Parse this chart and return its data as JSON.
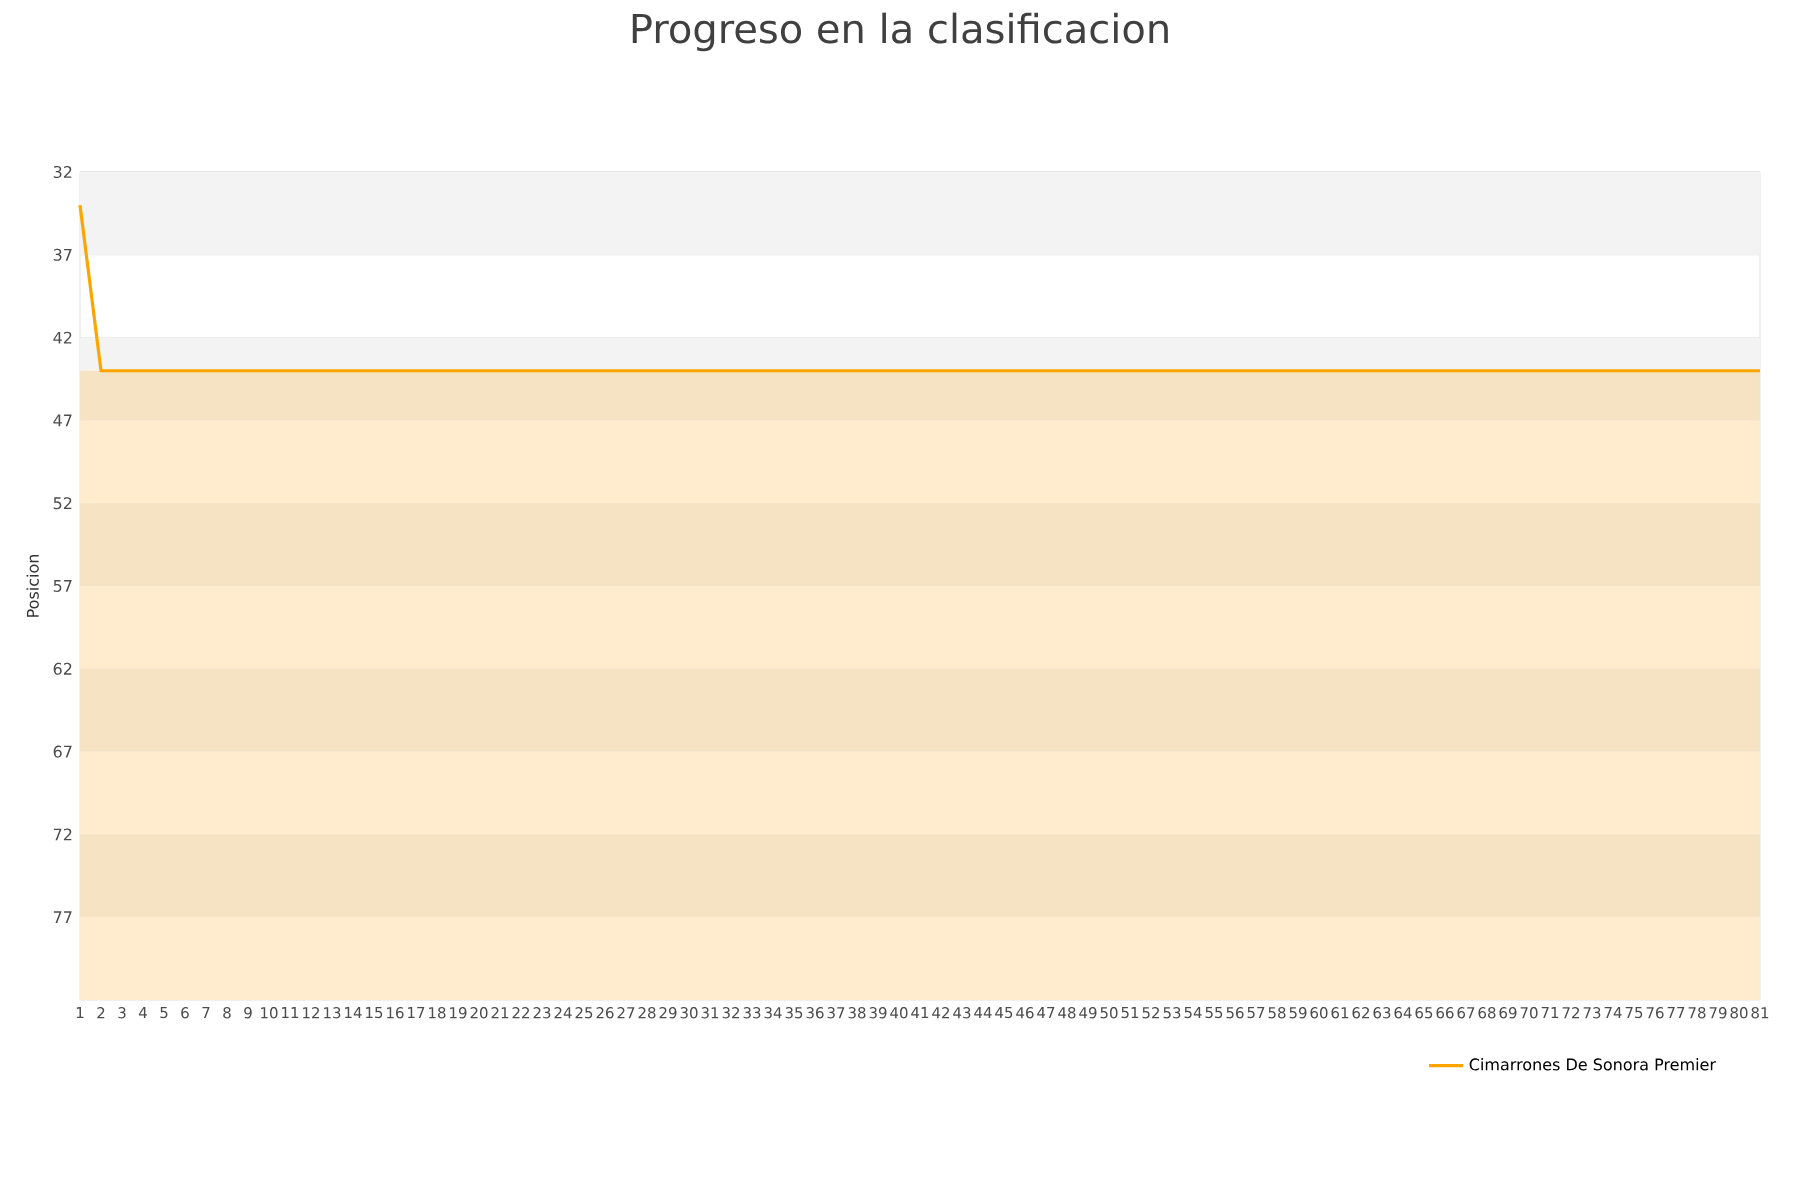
{
  "chart_data": {
    "type": "line",
    "title": "Progreso en la clasificacion",
    "ylabel": "Posicion",
    "categories": [
      "1",
      "2",
      "3",
      "4",
      "5",
      "6",
      "7",
      "8",
      "9",
      "10",
      "11",
      "12",
      "13",
      "14",
      "15",
      "16",
      "17",
      "18",
      "19",
      "20",
      "21",
      "22",
      "23",
      "24",
      "25",
      "26",
      "27",
      "28",
      "29",
      "30",
      "31",
      "32",
      "33",
      "34",
      "35",
      "36",
      "37",
      "38",
      "39",
      "40",
      "41",
      "42",
      "43",
      "44",
      "45",
      "46",
      "47",
      "48",
      "49",
      "50",
      "51",
      "52",
      "53",
      "54",
      "55",
      "56",
      "57",
      "58",
      "59",
      "60",
      "61",
      "62",
      "63",
      "64",
      "65",
      "66",
      "67",
      "68",
      "69",
      "70",
      "71",
      "72",
      "73",
      "74",
      "75",
      "76",
      "77",
      "78",
      "79",
      "80",
      "81"
    ],
    "series": [
      {
        "name": "Cimarrones De Sonora Premier",
        "color": "#ffa500",
        "values": [
          34,
          44,
          44,
          44,
          44,
          44,
          44,
          44,
          44,
          44,
          44,
          44,
          44,
          44,
          44,
          44,
          44,
          44,
          44,
          44,
          44,
          44,
          44,
          44,
          44,
          44,
          44,
          44,
          44,
          44,
          44,
          44,
          44,
          44,
          44,
          44,
          44,
          44,
          44,
          44,
          44,
          44,
          44,
          44,
          44,
          44,
          44,
          44,
          44,
          44,
          44,
          44,
          44,
          44,
          44,
          44,
          44,
          44,
          44,
          44,
          44,
          44,
          44,
          44,
          44,
          44,
          44,
          44,
          44,
          44,
          44,
          44,
          44,
          44,
          44,
          44,
          44,
          44,
          44,
          44,
          44
        ]
      }
    ],
    "ylim": [
      82,
      32
    ],
    "yticks": [
      32,
      37,
      42,
      47,
      52,
      57,
      62,
      67,
      72,
      77
    ],
    "bands": [
      {
        "axis": "y",
        "from": 32,
        "to": 37,
        "color": "#f3f3f3"
      },
      {
        "axis": "y",
        "from": 42,
        "to": 44,
        "color": "#f3f3f3"
      },
      {
        "axis": "y",
        "from": 44,
        "to": 47,
        "color": "#f5e3c3"
      },
      {
        "axis": "y",
        "from": 47,
        "to": 52,
        "color": "#ffeccf"
      },
      {
        "axis": "y",
        "from": 52,
        "to": 57,
        "color": "#f5e3c3"
      },
      {
        "axis": "y",
        "from": 57,
        "to": 62,
        "color": "#ffeccf"
      },
      {
        "axis": "y",
        "from": 62,
        "to": 67,
        "color": "#f5e3c3"
      },
      {
        "axis": "y",
        "from": 67,
        "to": 72,
        "color": "#ffeccf"
      },
      {
        "axis": "y",
        "from": 72,
        "to": 77,
        "color": "#f5e3c3"
      },
      {
        "axis": "y",
        "from": 77,
        "to": 82,
        "color": "#ffeccf"
      }
    ],
    "grid": "y",
    "legend": "bottom right",
    "marker": "none",
    "line_style": "solid"
  }
}
